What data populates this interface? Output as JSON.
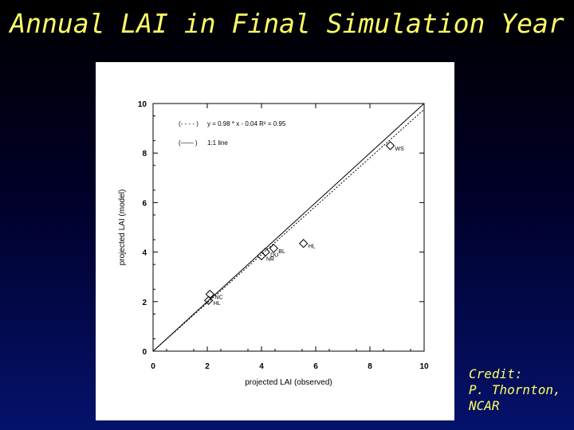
{
  "slide": {
    "title": "Annual LAI in Final Simulation Year",
    "credit": [
      "Credit:",
      "P. Thornton,",
      "NCAR"
    ]
  },
  "colors": {
    "title": "#ffff66",
    "panel": "#ffffff",
    "background_top": "#000000",
    "background_bottom": "#05126b"
  },
  "chart_data": {
    "type": "scatter",
    "title": "",
    "xlabel": "projected LAI (observed)",
    "ylabel": "projected LAI (model)",
    "xlim": [
      0,
      10
    ],
    "ylim": [
      0,
      10
    ],
    "xticks": [
      "0",
      "2",
      "4",
      "6",
      "8",
      "10"
    ],
    "yticks": [
      "0",
      "2",
      "4",
      "6",
      "8",
      "10"
    ],
    "grid": false,
    "legend_position": "top-left",
    "legend": [
      {
        "key": "(- - - - )",
        "text": "y = 0.98 * x - 0.04   R² = 0.95",
        "style": "dotted"
      },
      {
        "key": "(—— )",
        "text": "1:1 line",
        "style": "solid"
      }
    ],
    "points": [
      {
        "label": "WS",
        "x": 8.75,
        "y": 8.3
      },
      {
        "label": "HL",
        "x": 5.55,
        "y": 4.35
      },
      {
        "label": "BL",
        "x": 4.45,
        "y": 4.15
      },
      {
        "label": "DU",
        "x": 4.15,
        "y": 4.0
      },
      {
        "label": "NR",
        "x": 4.0,
        "y": 3.85
      },
      {
        "label": "NC",
        "x": 2.1,
        "y": 2.3
      },
      {
        "label": "HL",
        "x": 2.05,
        "y": 2.05
      }
    ],
    "lines": [
      {
        "name": "fit",
        "slope": 0.98,
        "intercept": -0.04,
        "style": "dotted"
      },
      {
        "name": "1:1",
        "slope": 1.0,
        "intercept": 0.0,
        "style": "solid"
      }
    ]
  }
}
